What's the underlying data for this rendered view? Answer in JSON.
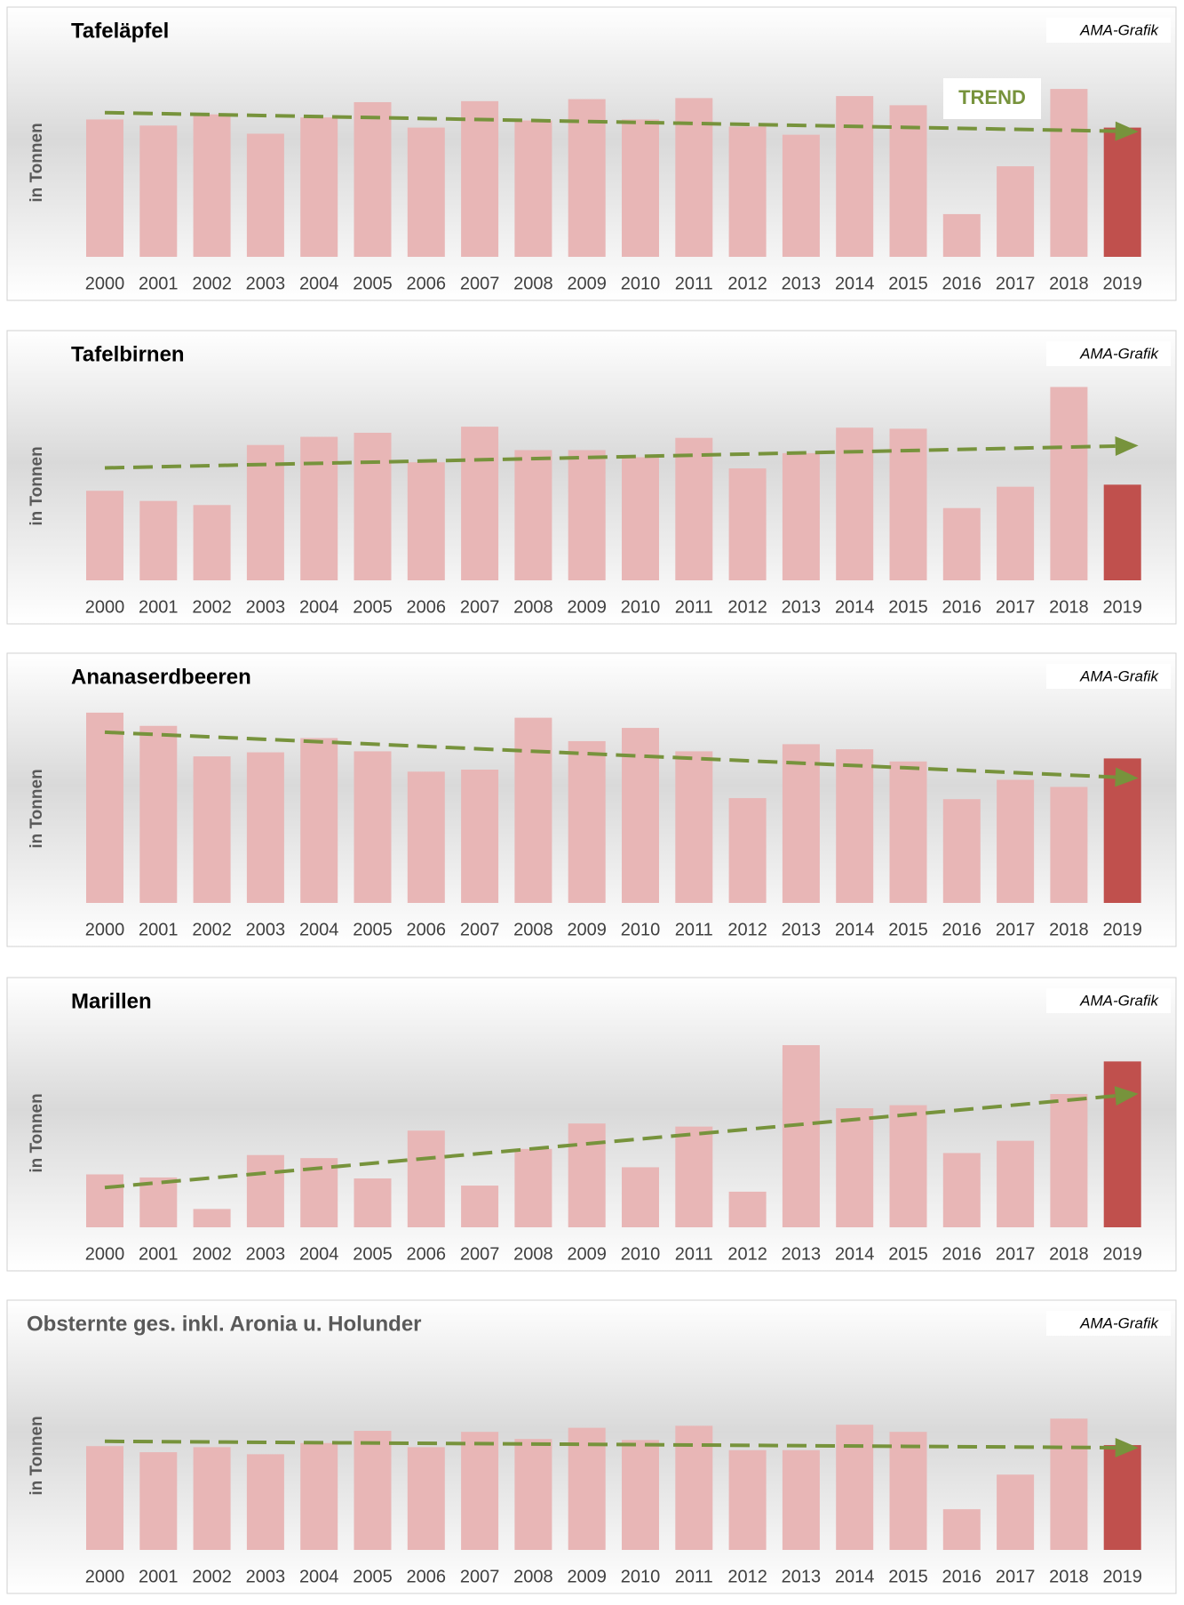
{
  "chart_data": [
    {
      "type": "bar",
      "title": "Tafeläpfel",
      "source": "AMA-Grafik",
      "y_label": "in Tonnen",
      "annotation": "TREND",
      "categories": [
        "2000",
        "2001",
        "2002",
        "2003",
        "2004",
        "2005",
        "2006",
        "2007",
        "2008",
        "2009",
        "2010",
        "2011",
        "2012",
        "2013",
        "2014",
        "2015",
        "2016",
        "2017",
        "2018",
        "2019"
      ],
      "values": [
        135,
        129,
        140,
        121,
        137,
        152,
        127,
        153,
        134,
        155,
        135,
        156,
        128,
        120,
        158,
        149,
        42,
        89,
        165,
        127
      ],
      "ylim": [
        0,
        200
      ],
      "color": "#e8b6b6",
      "highlight_color": "#c0504d",
      "trend_color": "#77933c"
    },
    {
      "type": "bar",
      "title": "Tafelbirnen",
      "source": "AMA-Grafik",
      "y_label": "in Tonnen",
      "categories": [
        "2000",
        "2001",
        "2002",
        "2003",
        "2004",
        "2005",
        "2006",
        "2007",
        "2008",
        "2009",
        "2010",
        "2011",
        "2012",
        "2013",
        "2014",
        "2015",
        "2016",
        "2017",
        "2018",
        "2019"
      ],
      "values": [
        88,
        78,
        74,
        133,
        141,
        145,
        116,
        151,
        128,
        128,
        121,
        140,
        110,
        125,
        150,
        149,
        71,
        92,
        190,
        94
      ],
      "ylim": [
        0,
        200
      ],
      "color": "#e8b6b6",
      "highlight_color": "#c0504d",
      "trend_color": "#77933c"
    },
    {
      "type": "bar",
      "title": "Ananaserdbeeren",
      "source": "AMA-Grafik",
      "y_label": "in Tonnen",
      "categories": [
        "2000",
        "2001",
        "2002",
        "2003",
        "2004",
        "2005",
        "2006",
        "2007",
        "2008",
        "2009",
        "2010",
        "2011",
        "2012",
        "2013",
        "2014",
        "2015",
        "2016",
        "2017",
        "2018",
        "2019"
      ],
      "values": [
        187,
        174,
        144,
        148,
        162,
        149,
        129,
        131,
        182,
        159,
        172,
        149,
        103,
        156,
        151,
        139,
        102,
        121,
        114,
        142
      ],
      "ylim": [
        0,
        200
      ],
      "color": "#e8b6b6",
      "highlight_color": "#c0504d",
      "trend_color": "#77933c"
    },
    {
      "type": "bar",
      "title": "Marillen",
      "source": "AMA-Grafik",
      "y_label": "in Tonnen",
      "categories": [
        "2000",
        "2001",
        "2002",
        "2003",
        "2004",
        "2005",
        "2006",
        "2007",
        "2008",
        "2009",
        "2010",
        "2011",
        "2012",
        "2013",
        "2014",
        "2015",
        "2016",
        "2017",
        "2018",
        "2019"
      ],
      "values": [
        52,
        49,
        18,
        71,
        68,
        48,
        95,
        41,
        77,
        102,
        59,
        99,
        35,
        179,
        117,
        120,
        73,
        85,
        131,
        163
      ],
      "ylim": [
        0,
        200
      ],
      "color": "#e8b6b6",
      "highlight_color": "#c0504d",
      "trend_color": "#77933c"
    },
    {
      "type": "bar",
      "title": "Obsternte ges. inkl. Aronia u. Holunder",
      "source": "AMA-Grafik",
      "y_label": "in Tonnen",
      "categories": [
        "2000",
        "2001",
        "2002",
        "2003",
        "2004",
        "2005",
        "2006",
        "2007",
        "2008",
        "2009",
        "2010",
        "2011",
        "2012",
        "2013",
        "2014",
        "2015",
        "2016",
        "2017",
        "2018",
        "2019"
      ],
      "values": [
        102,
        96,
        101,
        94,
        105,
        117,
        101,
        116,
        109,
        120,
        108,
        122,
        98,
        98,
        123,
        116,
        40,
        74,
        129,
        103
      ],
      "ylim": [
        0,
        200
      ],
      "color": "#e8b6b6",
      "highlight_color": "#c0504d",
      "trend_color": "#77933c"
    }
  ]
}
